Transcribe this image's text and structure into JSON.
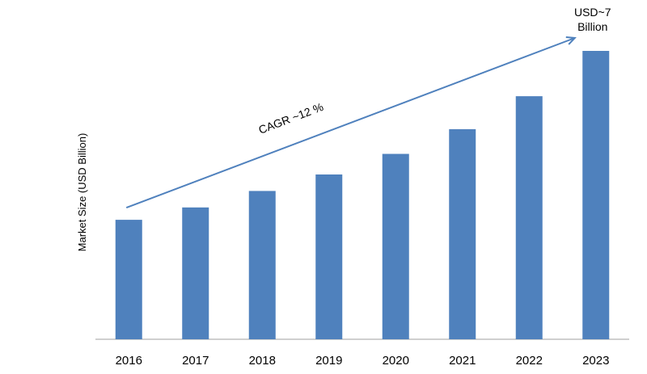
{
  "chart_data": {
    "type": "bar",
    "categories": [
      "2016",
      "2017",
      "2018",
      "2019",
      "2020",
      "2021",
      "2022",
      "2023"
    ],
    "values": [
      2.9,
      3.2,
      3.6,
      4.0,
      4.5,
      5.1,
      5.9,
      7.0
    ],
    "ylabel": "Market Size (USD Billion)",
    "xlabel": "",
    "ylim": [
      0,
      8
    ],
    "grid": false,
    "legend": "none",
    "bar_color": "#4f81bd",
    "annotations": {
      "cagr": "CAGR ~12 %",
      "end_value_line1": "USD~7",
      "end_value_line2": "Billion"
    }
  }
}
